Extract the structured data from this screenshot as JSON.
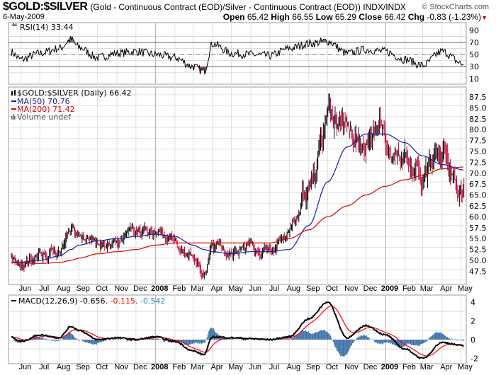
{
  "header": {
    "symbol": "$GOLD:$SILVER",
    "description": "(Gold - Continuous Contract (EOD)/Silver - Continuous Contract (EOD)) INDX/INDX",
    "brand": "© StockCharts.com",
    "date": "6-May-2009",
    "open_label": "Open",
    "open": "65.42",
    "high_label": "High",
    "high": "66.55",
    "low_label": "Low",
    "low": "65.29",
    "close_label": "Close",
    "close": "66.42",
    "chg_label": "Chg",
    "chg": "-0.83 (-1.23%)",
    "chg_icon": "down-triangle-icon"
  },
  "chart_data": [
    {
      "type": "line",
      "panel": "rsi",
      "legend": "RSI(14) 33.44",
      "yticks": [
        90,
        70,
        50,
        30,
        10
      ],
      "ylim": [
        0,
        100
      ],
      "reference_lines": [
        70,
        50,
        30
      ],
      "dates": [
        "2007-05-15",
        "2007-06-01",
        "2007-07-01",
        "2007-08-01",
        "2007-08-20",
        "2007-09-01",
        "2007-10-01",
        "2007-11-01",
        "2007-12-01",
        "2008-01-01",
        "2008-02-01",
        "2008-03-01",
        "2008-03-18",
        "2008-04-01",
        "2008-05-01",
        "2008-06-01",
        "2008-07-01",
        "2008-08-01",
        "2008-09-01",
        "2008-10-01",
        "2008-11-01",
        "2008-12-01",
        "2009-01-01",
        "2009-02-01",
        "2009-03-01",
        "2009-04-01",
        "2009-05-06"
      ],
      "values": [
        55,
        42,
        52,
        60,
        75,
        62,
        45,
        52,
        55,
        50,
        45,
        30,
        22,
        68,
        52,
        50,
        48,
        60,
        68,
        72,
        52,
        58,
        55,
        42,
        32,
        55,
        33.44
      ],
      "colors": {
        "line": "#000000",
        "overbought": "#5e8a5e",
        "oversold": "#a05858"
      }
    },
    {
      "type": "bar",
      "panel": "price",
      "legend": "$GOLD:$SILVER (Daily) 66.42",
      "series": [
        {
          "name": "MA(50) 70.76",
          "color": "#1a1aa0",
          "values": [
            49.5,
            49.6,
            50.0,
            51.0,
            52.5,
            53.5,
            54.5,
            55.0,
            55.5,
            56.0,
            55.5,
            53.5,
            52.5,
            52.0,
            51.5,
            52.0,
            52.0,
            52.5,
            58.0,
            68.0,
            76.0,
            79.0,
            79.0,
            77.0,
            74.0,
            72.0,
            70.76
          ]
        },
        {
          "name": "MA(200) 71.42",
          "color": "#e00000",
          "values": [
            49.5,
            49.4,
            49.3,
            49.5,
            50.0,
            50.5,
            51.5,
            52.0,
            52.5,
            53.5,
            54.0,
            54.0,
            54.0,
            54.0,
            54.0,
            54.0,
            54.0,
            55.0,
            57.0,
            60.0,
            62.5,
            65.0,
            67.0,
            68.5,
            69.5,
            71.0,
            71.42
          ]
        },
        {
          "name": "Volume undef",
          "color": "#666666",
          "values": []
        }
      ],
      "close_values": [
        50.5,
        50.0,
        51.5,
        53.0,
        57.0,
        55.5,
        54.0,
        55.0,
        55.5,
        56.0,
        54.0,
        49.0,
        47.0,
        52.0,
        52.0,
        52.5,
        51.5,
        55.0,
        66.0,
        80.0,
        80.0,
        80.0,
        78.0,
        73.0,
        69.0,
        71.5,
        66.42
      ],
      "yticks": [
        87.5,
        85.0,
        82.5,
        80.0,
        77.5,
        75.0,
        72.5,
        70.0,
        67.5,
        65.0,
        62.5,
        60.0,
        57.5,
        55.0,
        52.5,
        50.0,
        47.5
      ],
      "ylim": [
        45.5,
        90
      ],
      "colors": {
        "up": "#000000",
        "down": "#cc0033"
      }
    },
    {
      "type": "line",
      "panel": "macd",
      "legend": "MACD(12,26,9)",
      "legend_values": [
        "-0.656",
        "-0.115",
        "-0.542"
      ],
      "yticks": [
        4,
        2,
        0,
        -2
      ],
      "ylim": [
        -2.8,
        4.7
      ],
      "macd": [
        0.3,
        -0.2,
        0.5,
        0.2,
        1.4,
        1.0,
        0.0,
        0.2,
        0.0,
        0.3,
        -0.2,
        -1.2,
        -1.6,
        0.3,
        0.2,
        0.1,
        0.0,
        0.3,
        2.2,
        4.0,
        0.2,
        1.5,
        0.5,
        -1.0,
        -2.0,
        -0.3,
        -0.656
      ],
      "colors": {
        "macd": "#000000",
        "signal": "#ff0000",
        "histogram": "#3a6ea5"
      }
    }
  ],
  "xaxis": {
    "labels": [
      {
        "text": "Jun",
        "date": "2007-06-01"
      },
      {
        "text": "Jul",
        "date": "2007-07-01"
      },
      {
        "text": "Aug",
        "date": "2007-08-01"
      },
      {
        "text": "Sep",
        "date": "2007-09-01"
      },
      {
        "text": "Oct",
        "date": "2007-10-01"
      },
      {
        "text": "Nov",
        "date": "2007-11-01"
      },
      {
        "text": "Dec",
        "date": "2007-12-01"
      },
      {
        "text": "2008",
        "date": "2008-01-01",
        "bold": true
      },
      {
        "text": "Feb",
        "date": "2008-02-01"
      },
      {
        "text": "Mar",
        "date": "2008-03-01"
      },
      {
        "text": "Apr",
        "date": "2008-04-01"
      },
      {
        "text": "May",
        "date": "2008-05-01"
      },
      {
        "text": "Jun",
        "date": "2008-06-01"
      },
      {
        "text": "Jul",
        "date": "2008-07-01"
      },
      {
        "text": "Aug",
        "date": "2008-08-01"
      },
      {
        "text": "Sep",
        "date": "2008-09-01"
      },
      {
        "text": "Oct",
        "date": "2008-10-01"
      },
      {
        "text": "Nov",
        "date": "2008-11-01"
      },
      {
        "text": "Dec",
        "date": "2008-12-01"
      },
      {
        "text": "2009",
        "date": "2009-01-01",
        "bold": true
      },
      {
        "text": "Feb",
        "date": "2009-02-01"
      },
      {
        "text": "Mar",
        "date": "2009-03-01"
      },
      {
        "text": "Apr",
        "date": "2009-04-01"
      },
      {
        "text": "May",
        "date": "2009-05-01"
      }
    ]
  }
}
